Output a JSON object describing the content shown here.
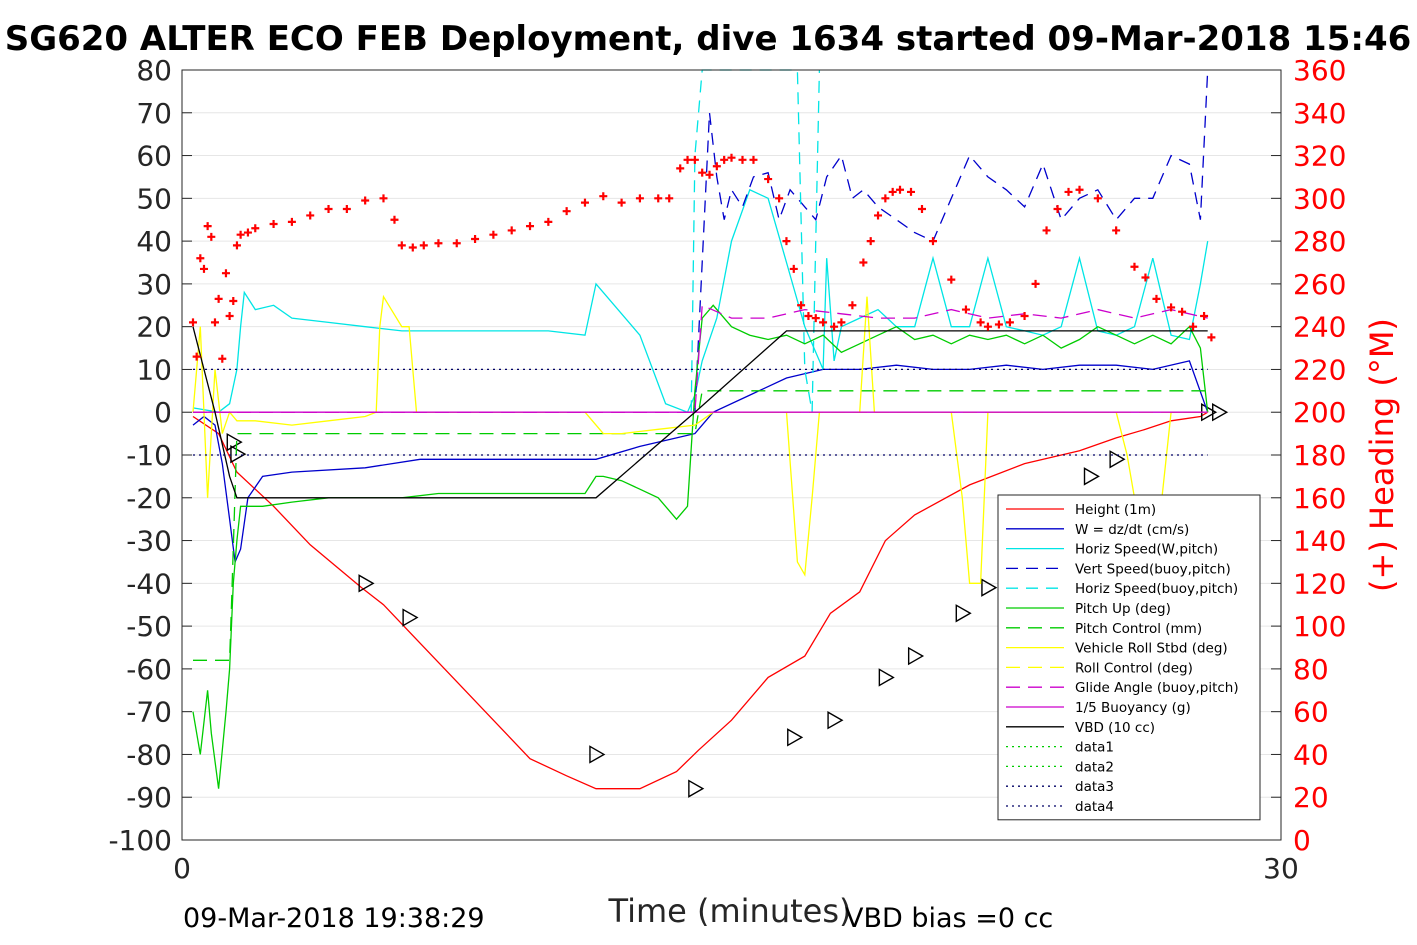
{
  "chart_data": {
    "type": "line",
    "title": "SG620 ALTER ECO FEB Deployment, dive 1634 started 09-Mar-2018 15:46",
    "xlabel": "Time (minutes)",
    "ylabel_right": "(+) Heading (°M)",
    "footer_left": "09-Mar-2018 19:38:29",
    "footer_right": "VBD bias =0 cc",
    "xlim": [
      0,
      30
    ],
    "ylim": [
      -100,
      80
    ],
    "ylim_right": [
      0,
      360
    ],
    "x_ticks": [
      "0",
      "30"
    ],
    "y_ticks": [
      "80",
      "70",
      "60",
      "50",
      "40",
      "30",
      "20",
      "10",
      "0",
      "-10",
      "-20",
      "-30",
      "-40",
      "-50",
      "-60",
      "-70",
      "-80",
      "-90",
      "-100"
    ],
    "y_ticks_right": [
      "360",
      "340",
      "320",
      "300",
      "280",
      "260",
      "240",
      "220",
      "200",
      "180",
      "160",
      "140",
      "120",
      "100",
      "80",
      "60",
      "40",
      "20",
      "0"
    ],
    "grid": true,
    "legend_position": "lower-right",
    "colors": {
      "heading": "#ff0000",
      "axis": "#262626",
      "grid": "#e6e6e6"
    },
    "series": [
      {
        "name": "Height (1m)",
        "color": "#ff0000",
        "dash": "",
        "marker": "triangle-right",
        "x": [
          0.3,
          1.0,
          1.5,
          2.5,
          3.5,
          4.9,
          5.5,
          6.5,
          7.5,
          8.5,
          9.5,
          10.5,
          11.3,
          12.5,
          13.5,
          14.1,
          15.0,
          16.0,
          17.0,
          17.7,
          18.5,
          19.2,
          20.0,
          21.5,
          23.0,
          24.5,
          25.5,
          26.3,
          27.0,
          27.8,
          28.0
        ],
        "y": [
          -1,
          -5,
          -14,
          -22,
          -31,
          -41,
          -45,
          -54,
          -63,
          -72,
          -81,
          -85,
          -88,
          -88,
          -84,
          -79,
          -72,
          -62,
          -57,
          -47,
          -42,
          -30,
          -24,
          -17,
          -12,
          -9,
          -6,
          -4,
          -2,
          -1,
          0
        ],
        "markers_x": [
          1.4,
          1.5,
          5.0,
          6.2,
          11.3,
          14.0,
          16.7,
          17.8,
          19.2,
          20.0,
          21.3,
          22.0,
          23.0,
          24.8,
          25.5,
          28.0,
          28.3
        ],
        "markers_y": [
          -7,
          -9.8,
          -40,
          -48,
          -80,
          -88,
          -76,
          -72,
          -62,
          -57,
          -47,
          -41,
          -35,
          -15,
          -11,
          0,
          0
        ]
      },
      {
        "name": "W = dz/dt (cm/s)",
        "color": "#0000cc",
        "dash": "",
        "x": [
          0.3,
          0.6,
          0.9,
          1.1,
          1.3,
          1.45,
          1.6,
          1.8,
          2.2,
          3,
          5,
          6.5,
          8,
          10,
          11.3,
          12.5,
          13.5,
          14.0,
          14.5,
          15.5,
          16.5,
          17.5,
          18.5,
          19.5,
          20.5,
          21.5,
          22.5,
          23.5,
          24.5,
          25.5,
          26.5,
          27.5,
          28.0
        ],
        "y": [
          -3,
          -1,
          -3,
          -12,
          -25,
          -35,
          -32,
          -20,
          -15,
          -14,
          -13,
          -11,
          -11,
          -11,
          -11,
          -8,
          -6,
          -5,
          0,
          4,
          8,
          10,
          10,
          11,
          10,
          10,
          11,
          10,
          11,
          11,
          10,
          12,
          0
        ]
      },
      {
        "name": "Horiz Speed(W,pitch)",
        "color": "#00e5e5",
        "dash": "",
        "x": [
          0.3,
          1.0,
          1.3,
          1.5,
          1.6,
          1.7,
          2.0,
          2.5,
          3,
          4,
          5,
          6,
          7,
          8,
          9,
          10,
          11,
          11.3,
          11.5,
          12.5,
          13.2,
          13.8,
          14.0,
          14.2,
          14.6,
          15.0,
          15.5,
          16.0,
          16.5,
          17.0,
          17.5,
          17.6,
          17.8,
          18.0,
          18.5,
          19.0,
          19.5,
          20.0,
          20.5,
          21.0,
          21.5,
          22.0,
          22.5,
          23.0,
          23.5,
          24.0,
          24.5,
          25.0,
          25.5,
          26.0,
          26.5,
          27.0,
          27.5,
          27.8,
          28.0
        ],
        "y": [
          1,
          0,
          2,
          10,
          20,
          28,
          24,
          25,
          22,
          21,
          20,
          19,
          19,
          19,
          19,
          19,
          18,
          30,
          28,
          18,
          2,
          0,
          4,
          12,
          22,
          40,
          52,
          50,
          35,
          20,
          10,
          36,
          12,
          20,
          22,
          24,
          20,
          20,
          36,
          20,
          20,
          36,
          20,
          19,
          18,
          20,
          36,
          19,
          18,
          20,
          36,
          18,
          17,
          30,
          40
        ]
      },
      {
        "name": "Vert Speed(buoy,pitch)",
        "color": "#0000cc",
        "dash": "12,8",
        "x": [
          14.0,
          14.2,
          14.4,
          14.6,
          14.8,
          15.0,
          15.3,
          15.6,
          16.0,
          16.3,
          16.6,
          17.0,
          17.3,
          17.6,
          18.0,
          18.3,
          18.6,
          19.0,
          19.5,
          20.0,
          20.5,
          21.0,
          21.5,
          22.0,
          22.5,
          23.0,
          23.5,
          24.0,
          24.5,
          25.0,
          25.5,
          26.0,
          26.5,
          27.0,
          27.5,
          27.8,
          28.0
        ],
        "y": [
          0,
          35,
          70,
          55,
          45,
          52,
          48,
          55,
          56,
          45,
          52,
          48,
          45,
          55,
          60,
          50,
          52,
          48,
          45,
          42,
          40,
          50,
          60,
          55,
          52,
          48,
          58,
          45,
          50,
          52,
          45,
          50,
          50,
          60,
          58,
          45,
          80
        ]
      },
      {
        "name": "Horiz Speed(buoy,pitch)",
        "color": "#00e5e5",
        "dash": "12,8",
        "x": [
          13.9,
          14.0,
          14.2,
          14.4,
          16.6,
          16.8,
          17.0,
          17.2,
          17.4
        ],
        "y": [
          0,
          60,
          80,
          80,
          80,
          80,
          10,
          0,
          80
        ]
      },
      {
        "name": "Pitch Up (deg)",
        "color": "#00cc00",
        "dash": "",
        "x": [
          0.3,
          0.5,
          0.7,
          0.8,
          1.0,
          1.2,
          1.3,
          1.4,
          1.5,
          1.6,
          1.8,
          2.2,
          3,
          4,
          5,
          6,
          7,
          8,
          9,
          10,
          11,
          11.3,
          11.5,
          12,
          12.5,
          13,
          13.5,
          13.8,
          14.0,
          14.2,
          14.5,
          15,
          15.5,
          16,
          16.5,
          17,
          17.5,
          18,
          18.5,
          19,
          19.5,
          20,
          20.5,
          21,
          21.5,
          22,
          22.5,
          23,
          23.5,
          24,
          24.5,
          25,
          25.5,
          26,
          26.5,
          27,
          27.5,
          27.8,
          28.0
        ],
        "y": [
          -70,
          -80,
          -65,
          -75,
          -88,
          -70,
          -60,
          -40,
          -30,
          -22,
          -22,
          -22,
          -21,
          -20,
          -20,
          -20,
          -19,
          -19,
          -19,
          -19,
          -19,
          -15,
          -15,
          -16,
          -18,
          -20,
          -25,
          -22,
          5,
          22,
          25,
          20,
          18,
          17,
          18,
          16,
          18,
          14,
          16,
          18,
          20,
          17,
          18,
          16,
          18,
          17,
          18,
          16,
          18,
          15,
          17,
          20,
          18,
          16,
          18,
          16,
          20,
          15,
          0
        ]
      },
      {
        "name": "Pitch Control (mm)",
        "color": "#00cc00",
        "dash": "14,8",
        "x": [
          0.3,
          1.3,
          1.35,
          1.5,
          2,
          3,
          5,
          7,
          9,
          11,
          13,
          14.0,
          14.2,
          16,
          18,
          20,
          22,
          24,
          26,
          28
        ],
        "y": [
          -58,
          -58,
          -45,
          -5,
          -5,
          -5,
          -5,
          -5,
          -5,
          -5,
          -5,
          -5,
          5,
          5,
          5,
          5,
          5,
          5,
          5,
          5
        ]
      },
      {
        "name": "Vehicle Roll Stbd (deg)",
        "color": "#ffff00",
        "dash": "",
        "x": [
          0.3,
          0.5,
          0.7,
          0.9,
          1.1,
          1.3,
          1.5,
          2.0,
          3,
          4,
          5,
          5.3,
          5.4,
          5.5,
          6.0,
          6.2,
          6.4,
          7,
          8,
          9,
          10,
          11,
          11.5,
          12,
          13,
          14,
          14.5,
          15,
          15.5,
          16,
          16.5,
          16.8,
          17.0,
          17.2,
          17.4,
          18,
          18.5,
          18.7,
          18.9,
          19.5,
          20.0,
          21.0,
          21.3,
          21.5,
          21.8,
          22.0,
          22.5,
          23,
          24,
          25,
          25.5,
          25.8,
          26.0,
          26.5,
          27,
          27.5,
          28.0
        ],
        "y": [
          0,
          20,
          -20,
          10,
          -5,
          0,
          -2,
          -2,
          -3,
          -2,
          -1,
          0,
          20,
          27,
          20,
          20,
          0,
          0,
          0,
          0,
          0,
          0,
          -5,
          -5,
          -4,
          -3,
          0,
          0,
          0,
          0,
          0,
          -35,
          -38,
          -20,
          0,
          0,
          0,
          27,
          0,
          0,
          0,
          0,
          -20,
          -40,
          -40,
          0,
          0,
          0,
          0,
          0,
          0,
          -10,
          -20,
          -40,
          0,
          0,
          0
        ]
      },
      {
        "name": "Roll Control (deg)",
        "color": "#ffff00",
        "dash": "14,8",
        "x": [
          0.3,
          28
        ],
        "y": [
          0,
          0
        ]
      },
      {
        "name": "Glide Angle (buoy,pitch)",
        "color": "#cc00cc",
        "dash": "14,8",
        "x": [
          0.3,
          13.9,
          14.0,
          14.2,
          15,
          16,
          17,
          18,
          19,
          20,
          21,
          22,
          23,
          24,
          25,
          26,
          27,
          28
        ],
        "y": [
          0,
          0,
          0,
          25,
          22,
          22,
          24,
          23,
          22,
          22,
          24,
          22,
          23,
          22,
          24,
          22,
          24,
          22
        ]
      },
      {
        "name": "1/5 Buoyancy (g)",
        "color": "#cc00cc",
        "dash": "",
        "x": [
          0.3,
          13.9,
          14.0,
          28
        ],
        "y": [
          0,
          0,
          0,
          0
        ]
      },
      {
        "name": "VBD (10 cc)",
        "color": "#000000",
        "dash": "",
        "x": [
          0.3,
          0.9,
          1.3,
          1.5,
          11.3,
          14.0,
          16.5,
          17.0,
          28
        ],
        "y": [
          20,
          0,
          -15,
          -20,
          -20,
          0,
          19,
          19,
          19
        ]
      },
      {
        "name": "data1",
        "color": "#00cc00",
        "dash": "2,4",
        "x": [],
        "y": []
      },
      {
        "name": "data2",
        "color": "#00cc00",
        "dash": "2,4",
        "x": [],
        "y": []
      },
      {
        "name": "data3",
        "color": "#000066",
        "dash": "2,4",
        "x": [
          0.3,
          28
        ],
        "y": [
          10,
          10
        ]
      },
      {
        "name": "data4",
        "color": "#000066",
        "dash": "2,4",
        "x": [
          0.3,
          28
        ],
        "y": [
          -10,
          -10
        ]
      }
    ],
    "heading": {
      "name": "Heading",
      "color": "#ff0000",
      "marker": "plus",
      "x": [
        0.3,
        0.4,
        0.5,
        0.6,
        0.7,
        0.8,
        0.9,
        1.0,
        1.1,
        1.2,
        1.3,
        1.4,
        1.5,
        1.6,
        1.8,
        2.0,
        2.5,
        3.0,
        3.5,
        4.0,
        4.5,
        5.0,
        5.5,
        5.8,
        6.0,
        6.3,
        6.6,
        7.0,
        7.5,
        8.0,
        8.5,
        9.0,
        9.5,
        10.0,
        10.5,
        11.0,
        11.5,
        12.0,
        12.5,
        13.0,
        13.3,
        13.6,
        13.8,
        14.0,
        14.2,
        14.4,
        14.6,
        14.8,
        15.0,
        15.3,
        15.6,
        16.0,
        16.3,
        16.5,
        16.7,
        16.9,
        17.1,
        17.3,
        17.5,
        17.8,
        18.0,
        18.3,
        18.6,
        18.8,
        19.0,
        19.2,
        19.4,
        19.6,
        19.9,
        20.2,
        20.5,
        21.0,
        21.4,
        21.8,
        22.0,
        22.3,
        22.6,
        23.0,
        23.3,
        23.6,
        23.9,
        24.2,
        24.5,
        25.0,
        25.5,
        26.0,
        26.3,
        26.6,
        27.0,
        27.3,
        27.6,
        27.9,
        28.1
      ],
      "y": [
        242,
        226,
        272,
        267,
        287,
        282,
        242,
        253,
        225,
        265,
        245,
        252,
        278,
        283,
        284,
        286,
        288,
        289,
        292,
        295,
        295,
        299,
        300,
        290,
        278,
        277,
        278,
        279,
        279,
        281,
        283,
        285,
        287,
        289,
        294,
        298,
        301,
        298,
        300,
        300,
        300,
        314,
        318,
        318,
        312,
        311,
        315,
        318,
        319,
        318,
        318,
        309,
        300,
        280,
        267,
        250,
        245,
        244,
        242,
        240,
        242,
        250,
        270,
        280,
        292,
        300,
        303,
        304,
        303,
        295,
        280,
        262,
        248,
        242,
        240,
        241,
        242,
        245,
        260,
        285,
        295,
        303,
        304,
        300,
        285,
        268,
        263,
        253,
        249,
        247,
        240,
        245,
        235
      ]
    }
  }
}
